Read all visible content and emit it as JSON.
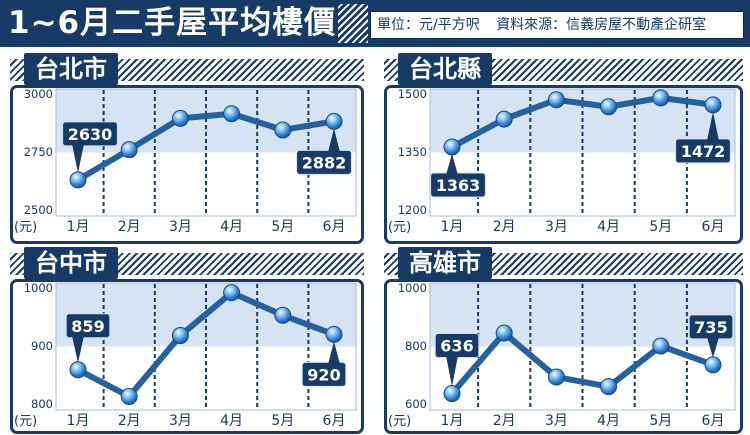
{
  "header": {
    "title": "1~6月二手屋平均樓價",
    "unit": "單位：元/平方呎",
    "source": "資料來源：信義房屋不動產企研室"
  },
  "colors": {
    "navy": "#173a66",
    "line": "#25619c",
    "shade": "#d5e3f2",
    "label_box": "#173a66",
    "label_text": "#ffffff"
  },
  "chart_data": [
    {
      "type": "line",
      "title": "台北市",
      "categories": [
        "1月",
        "2月",
        "3月",
        "4月",
        "5月",
        "6月"
      ],
      "values": [
        2630,
        2760,
        2895,
        2915,
        2845,
        2882
      ],
      "data_labels": [
        "2630",
        null,
        null,
        null,
        null,
        "2882"
      ],
      "ylabel": "(元)",
      "ylim": [
        2500,
        3000
      ],
      "yticks": [
        2500,
        2750,
        3000
      ],
      "shaded_range": [
        2750,
        3000
      ],
      "grid": true
    },
    {
      "type": "line",
      "title": "台北縣",
      "categories": [
        "1月",
        "2月",
        "3月",
        "4月",
        "5月",
        "6月"
      ],
      "values": [
        1363,
        1435,
        1485,
        1467,
        1490,
        1472
      ],
      "data_labels": [
        "1363",
        null,
        null,
        null,
        null,
        "1472"
      ],
      "ylabel": "(元)",
      "ylim": [
        1200,
        1500
      ],
      "yticks": [
        1200,
        1350,
        1500
      ],
      "shaded_range": [
        1350,
        1500
      ],
      "grid": true
    },
    {
      "type": "line",
      "title": "台中市",
      "categories": [
        "1月",
        "2月",
        "3月",
        "4月",
        "5月",
        "6月"
      ],
      "values": [
        859,
        813,
        918,
        992,
        953,
        920
      ],
      "data_labels": [
        "859",
        null,
        null,
        null,
        null,
        "920"
      ],
      "ylabel": "(元)",
      "ylim": [
        800,
        1000
      ],
      "yticks": [
        800,
        900,
        1000
      ],
      "shaded_range": [
        900,
        1000
      ],
      "grid": true
    },
    {
      "type": "line",
      "title": "高雄市",
      "categories": [
        "1月",
        "2月",
        "3月",
        "4月",
        "5月",
        "6月"
      ],
      "values": [
        636,
        845,
        693,
        660,
        800,
        735
      ],
      "data_labels": [
        "636",
        null,
        null,
        null,
        null,
        "735"
      ],
      "ylabel": "(元)",
      "ylim": [
        600,
        1000
      ],
      "yticks": [
        600,
        800,
        1000
      ],
      "shaded_range": [
        800,
        1000
      ],
      "grid": true
    }
  ]
}
